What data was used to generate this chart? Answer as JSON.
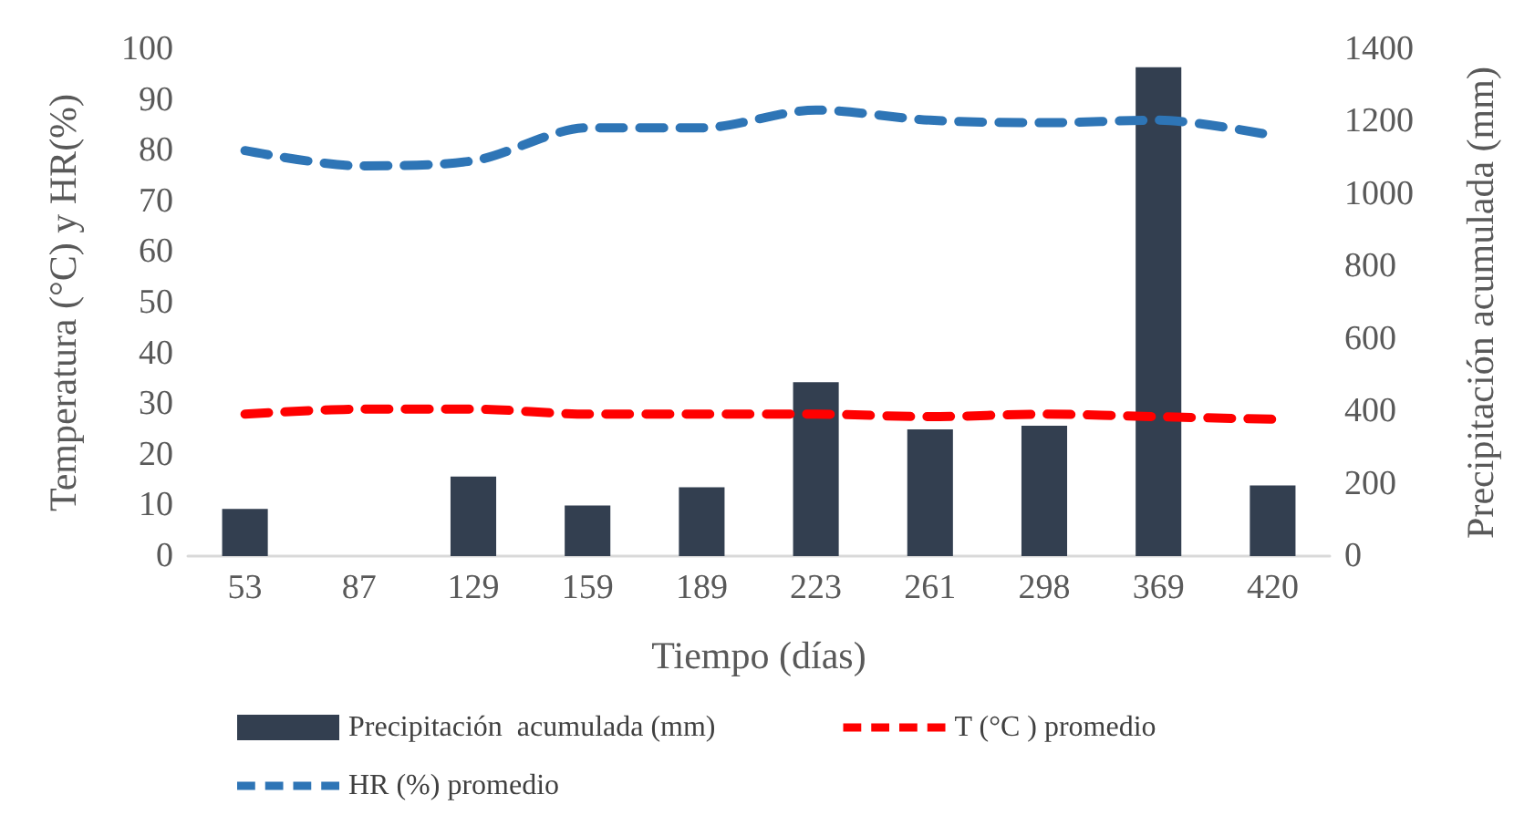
{
  "chart_data": {
    "type": "bar",
    "xlabel": "Tiempo (días)",
    "ylabel": "Temperatura (°C) y HR(%)",
    "y2label": "Precipitación acumulada (mm)",
    "categories": [
      "53",
      "87",
      "129",
      "159",
      "189",
      "223",
      "261",
      "298",
      "369",
      "420"
    ],
    "series": [
      {
        "name": "Precipitación  acumulada (mm)",
        "axis": "y2",
        "color": "#333f50",
        "values": [
          130,
          0,
          220,
          140,
          190,
          480,
          350,
          360,
          1350,
          195
        ]
      },
      {
        "name": "T (°C ) promedio",
        "type": "line",
        "line_style": "dashed",
        "color": "#ff0000",
        "values": [
          28,
          29,
          29,
          28,
          28,
          28,
          27.5,
          28,
          27.5,
          27
        ]
      },
      {
        "name": "HR (%) promedio",
        "type": "line",
        "line_style": "dashed",
        "color": "#2e75b6",
        "values": [
          80,
          77,
          78,
          84.5,
          84.5,
          88,
          86,
          85.5,
          86,
          83
        ]
      }
    ],
    "ylim": [
      0,
      100
    ],
    "yticks": [
      0,
      10,
      20,
      30,
      40,
      50,
      60,
      70,
      80,
      90,
      100
    ],
    "y2lim": [
      0,
      1400
    ],
    "y2ticks": [
      0,
      200,
      400,
      600,
      800,
      1000,
      1200,
      1400
    ],
    "grid": false,
    "legend": "bottom",
    "marker": "none"
  }
}
